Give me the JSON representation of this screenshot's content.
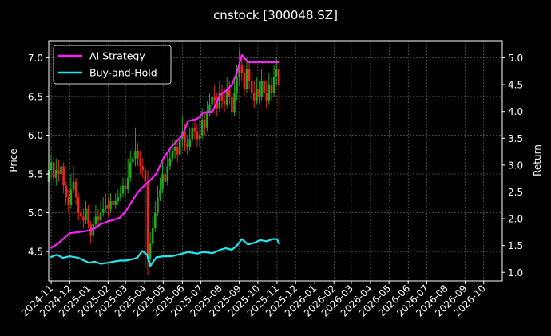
{
  "chart_data": {
    "type": "line",
    "title": "cnstock [300048.SZ]",
    "ylabel_left": "Price",
    "ylabel_right": "Return",
    "grid": true,
    "legend_position": "top-left",
    "background": "#000000",
    "x_tick_labels": [
      "2024-11",
      "2024-12",
      "2025-01",
      "2025-02",
      "2025-03",
      "2025-04",
      "2025-05",
      "2025-06",
      "2025-07",
      "2025-08",
      "2025-09",
      "2025-10",
      "2025-11",
      "2025-12",
      "2026-01",
      "2026-02",
      "2026-03",
      "2026-04",
      "2026-05",
      "2026-06",
      "2026-07",
      "2026-08",
      "2026-09",
      "2026-10"
    ],
    "x_range": [
      "2024-10-28",
      "2026-10-31"
    ],
    "y_left": {
      "range": [
        4.12,
        7.22
      ],
      "ticks": [
        "4.5",
        "5.0",
        "5.5",
        "6.0",
        "6.5",
        "7.0"
      ]
    },
    "y_right": {
      "range": [
        0.84,
        5.32
      ],
      "ticks": [
        "1.0",
        "1.5",
        "2.0",
        "2.5",
        "3.0",
        "3.5",
        "4.0",
        "4.5",
        "5.0"
      ]
    },
    "series": [
      {
        "name": "AI Strategy",
        "color": "#ff1cff",
        "axis": "right",
        "x": [
          "2024-10-31",
          "2024-11-10",
          "2024-11-20",
          "2024-12-01",
          "2024-12-15",
          "2025-01-01",
          "2025-01-10",
          "2025-01-20",
          "2025-02-01",
          "2025-02-10",
          "2025-02-20",
          "2025-03-01",
          "2025-03-10",
          "2025-03-20",
          "2025-03-28",
          "2025-04-10",
          "2025-04-20",
          "2025-05-01",
          "2025-05-15",
          "2025-06-01",
          "2025-06-10",
          "2025-06-25",
          "2025-07-05",
          "2025-07-20",
          "2025-08-01",
          "2025-08-10",
          "2025-08-20",
          "2025-08-28",
          "2025-09-05",
          "2025-09-15",
          "2025-09-25",
          "2025-10-05",
          "2025-10-15",
          "2025-10-25",
          "2025-11-05"
        ],
        "values": [
          1.45,
          1.52,
          1.62,
          1.73,
          1.75,
          1.78,
          1.82,
          1.9,
          1.95,
          1.98,
          2.02,
          2.13,
          2.3,
          2.48,
          2.58,
          2.72,
          2.84,
          3.12,
          3.35,
          3.55,
          3.82,
          3.86,
          3.98,
          4.0,
          4.32,
          4.38,
          4.5,
          4.72,
          5.05,
          4.92,
          4.92,
          4.92,
          4.92,
          4.92,
          4.92
        ]
      },
      {
        "name": "Buy-and-Hold",
        "color": "#1ee8f0",
        "axis": "right",
        "x": [
          "2024-10-31",
          "2024-11-10",
          "2024-11-20",
          "2024-12-01",
          "2024-12-15",
          "2025-01-01",
          "2025-01-10",
          "2025-01-20",
          "2025-02-01",
          "2025-02-10",
          "2025-02-20",
          "2025-03-01",
          "2025-03-10",
          "2025-03-20",
          "2025-03-28",
          "2025-04-05",
          "2025-04-10",
          "2025-04-20",
          "2025-05-01",
          "2025-05-15",
          "2025-06-01",
          "2025-06-10",
          "2025-06-25",
          "2025-07-05",
          "2025-07-20",
          "2025-08-01",
          "2025-08-10",
          "2025-08-20",
          "2025-08-28",
          "2025-09-05",
          "2025-09-15",
          "2025-09-25",
          "2025-10-05",
          "2025-10-15",
          "2025-10-25",
          "2025-11-01",
          "2025-11-05"
        ],
        "values": [
          1.28,
          1.33,
          1.27,
          1.3,
          1.27,
          1.18,
          1.2,
          1.16,
          1.18,
          1.2,
          1.22,
          1.22,
          1.24,
          1.27,
          1.4,
          1.33,
          1.12,
          1.28,
          1.3,
          1.3,
          1.35,
          1.38,
          1.35,
          1.38,
          1.36,
          1.42,
          1.45,
          1.42,
          1.5,
          1.62,
          1.52,
          1.55,
          1.6,
          1.58,
          1.62,
          1.62,
          1.52
        ]
      }
    ],
    "candles": {
      "axis": "left",
      "up_color": "#1fa81f",
      "down_color": "#e8261c",
      "x": [
        "2024-10-28",
        "2024-11-01",
        "2024-11-05",
        "2024-11-09",
        "2024-11-13",
        "2024-11-17",
        "2024-11-21",
        "2024-11-25",
        "2024-11-29",
        "2024-12-03",
        "2024-12-07",
        "2024-12-11",
        "2024-12-15",
        "2024-12-19",
        "2024-12-23",
        "2024-12-27",
        "2024-12-31",
        "2025-01-04",
        "2025-01-08",
        "2025-01-12",
        "2025-01-16",
        "2025-01-20",
        "2025-01-24",
        "2025-01-28",
        "2025-02-01",
        "2025-02-05",
        "2025-02-09",
        "2025-02-13",
        "2025-02-17",
        "2025-02-21",
        "2025-02-25",
        "2025-03-01",
        "2025-03-05",
        "2025-03-09",
        "2025-03-13",
        "2025-03-17",
        "2025-03-21",
        "2025-03-25",
        "2025-03-29",
        "2025-04-02",
        "2025-04-06",
        "2025-04-10",
        "2025-04-14",
        "2025-04-18",
        "2025-04-22",
        "2025-04-26",
        "2025-04-30",
        "2025-05-04",
        "2025-05-08",
        "2025-05-12",
        "2025-05-16",
        "2025-05-20",
        "2025-05-24",
        "2025-05-28",
        "2025-06-01",
        "2025-06-05",
        "2025-06-09",
        "2025-06-13",
        "2025-06-17",
        "2025-06-21",
        "2025-06-25",
        "2025-06-29",
        "2025-07-03",
        "2025-07-07",
        "2025-07-11",
        "2025-07-15",
        "2025-07-19",
        "2025-07-23",
        "2025-07-27",
        "2025-07-31",
        "2025-08-04",
        "2025-08-08",
        "2025-08-12",
        "2025-08-16",
        "2025-08-20",
        "2025-08-24",
        "2025-08-28",
        "2025-09-01",
        "2025-09-05",
        "2025-09-09",
        "2025-09-13",
        "2025-09-17",
        "2025-09-21",
        "2025-09-25",
        "2025-09-29",
        "2025-10-03",
        "2025-10-07",
        "2025-10-11",
        "2025-10-15",
        "2025-10-19",
        "2025-10-23",
        "2025-10-27",
        "2025-10-31",
        "2025-11-04"
      ],
      "open": [
        5.4,
        5.55,
        5.65,
        5.45,
        5.55,
        5.5,
        5.6,
        5.35,
        5.2,
        5.1,
        5.3,
        5.4,
        5.2,
        5.0,
        4.95,
        4.9,
        5.05,
        4.85,
        4.7,
        4.85,
        4.95,
        4.9,
        5.0,
        5.05,
        5.1,
        5.05,
        5.15,
        5.1,
        5.15,
        5.2,
        5.25,
        5.35,
        5.3,
        5.45,
        5.65,
        5.7,
        5.8,
        5.7,
        5.6,
        5.55,
        5.4,
        4.4,
        4.6,
        4.8,
        5.0,
        5.2,
        5.3,
        5.5,
        5.4,
        5.6,
        5.7,
        5.8,
        5.85,
        5.75,
        5.95,
        6.05,
        5.9,
        5.85,
        5.95,
        6.1,
        6.05,
        5.95,
        6.0,
        6.2,
        6.1,
        6.3,
        6.4,
        6.5,
        6.45,
        6.35,
        6.55,
        6.45,
        6.4,
        6.6,
        6.5,
        6.3,
        6.55,
        6.75,
        6.9,
        6.8,
        6.6,
        6.85,
        6.7,
        6.55,
        6.45,
        6.6,
        6.5,
        6.7,
        6.55,
        6.45,
        6.65,
        6.55,
        6.75,
        6.85
      ],
      "close": [
        5.55,
        5.65,
        5.45,
        5.55,
        5.5,
        5.6,
        5.35,
        5.2,
        5.1,
        5.3,
        5.4,
        5.2,
        5.0,
        4.95,
        4.9,
        5.05,
        4.85,
        4.7,
        4.85,
        4.95,
        4.9,
        5.0,
        5.05,
        5.1,
        5.05,
        5.15,
        5.1,
        5.15,
        5.2,
        5.25,
        5.35,
        5.3,
        5.45,
        5.65,
        5.7,
        5.8,
        5.7,
        5.6,
        5.55,
        5.4,
        4.4,
        4.6,
        4.8,
        5.0,
        5.2,
        5.3,
        5.5,
        5.4,
        5.6,
        5.7,
        5.8,
        5.85,
        5.75,
        5.95,
        6.05,
        5.9,
        5.85,
        5.95,
        6.1,
        6.05,
        5.95,
        6.0,
        6.2,
        6.1,
        6.3,
        6.4,
        6.5,
        6.45,
        6.35,
        6.55,
        6.45,
        6.4,
        6.6,
        6.5,
        6.3,
        6.55,
        6.75,
        6.9,
        6.8,
        6.6,
        6.85,
        6.7,
        6.55,
        6.45,
        6.6,
        6.5,
        6.7,
        6.55,
        6.45,
        6.65,
        6.55,
        6.75,
        6.85,
        6.65
      ],
      "high": [
        5.9,
        5.75,
        5.72,
        5.7,
        5.68,
        5.75,
        5.65,
        5.4,
        5.3,
        5.5,
        5.6,
        5.45,
        5.25,
        5.1,
        5.05,
        5.15,
        5.1,
        4.9,
        4.95,
        5.1,
        5.05,
        5.15,
        5.2,
        5.25,
        5.2,
        5.25,
        5.25,
        5.25,
        5.3,
        5.35,
        5.45,
        5.45,
        5.7,
        5.8,
        5.95,
        6.1,
        5.9,
        5.8,
        5.7,
        5.6,
        5.55,
        4.75,
        4.95,
        5.15,
        5.35,
        5.45,
        5.65,
        5.65,
        5.75,
        5.85,
        5.95,
        5.95,
        5.95,
        6.1,
        6.25,
        6.15,
        6.0,
        6.1,
        6.25,
        6.2,
        6.15,
        6.2,
        6.35,
        6.3,
        6.45,
        6.55,
        6.65,
        6.65,
        6.55,
        6.7,
        6.65,
        6.6,
        6.75,
        6.7,
        6.6,
        6.7,
        6.9,
        7.1,
        7.05,
        6.9,
        7.0,
        6.95,
        6.8,
        6.7,
        6.75,
        6.7,
        6.85,
        6.8,
        6.7,
        6.8,
        6.75,
        6.9,
        7.0,
        6.95
      ],
      "low": [
        5.3,
        5.45,
        5.35,
        5.35,
        5.4,
        5.4,
        5.25,
        5.1,
        5.0,
        5.05,
        5.25,
        5.1,
        4.9,
        4.85,
        4.8,
        4.85,
        4.8,
        4.6,
        4.65,
        4.8,
        4.8,
        4.85,
        4.95,
        5.0,
        4.95,
        5.0,
        5.05,
        5.05,
        5.1,
        5.15,
        5.2,
        5.2,
        5.25,
        5.4,
        5.55,
        5.6,
        5.6,
        5.5,
        5.45,
        4.3,
        4.2,
        4.3,
        4.55,
        4.75,
        4.95,
        5.15,
        5.25,
        5.35,
        5.35,
        5.55,
        5.65,
        5.7,
        5.65,
        5.7,
        5.85,
        5.8,
        5.75,
        5.8,
        5.9,
        5.95,
        5.85,
        5.85,
        5.95,
        6.0,
        6.05,
        6.25,
        6.35,
        6.35,
        6.25,
        6.3,
        6.35,
        6.3,
        6.35,
        6.4,
        6.2,
        6.25,
        6.45,
        6.65,
        6.7,
        6.5,
        6.55,
        6.6,
        6.45,
        6.35,
        6.4,
        6.4,
        6.45,
        6.45,
        6.35,
        6.4,
        6.45,
        6.5,
        6.65,
        6.3
      ]
    }
  }
}
